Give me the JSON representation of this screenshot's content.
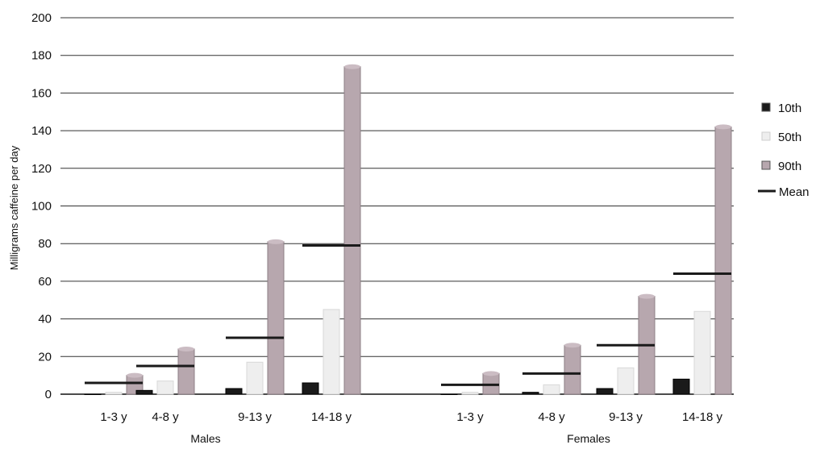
{
  "chart_data": {
    "type": "bar",
    "ylabel": "Milligrams caffeine per day",
    "ylim": [
      0,
      200
    ],
    "yticks": [
      "0",
      "20",
      "40",
      "60",
      "80",
      "100",
      "120",
      "140",
      "160",
      "180",
      "200"
    ],
    "grid": true,
    "legend_position": "right",
    "groups": [
      {
        "name": "Males",
        "categories": [
          "1-3 y",
          "4-8 y",
          "9-13 y",
          "14-18 y"
        ],
        "series": [
          {
            "name": "10th",
            "values": [
              0,
              2,
              3,
              6
            ]
          },
          {
            "name": "50th",
            "values": [
              1,
              7,
              17,
              45
            ]
          },
          {
            "name": "90th",
            "values": [
              10,
              24,
              81,
              174
            ]
          },
          {
            "name": "Mean",
            "values": [
              6,
              15,
              30,
              79
            ]
          }
        ]
      },
      {
        "name": "Females",
        "categories": [
          "1-3 y",
          "4-8 y",
          "9-13 y",
          "14-18 y"
        ],
        "series": [
          {
            "name": "10th",
            "values": [
              0,
              1,
              3,
              8
            ]
          },
          {
            "name": "50th",
            "values": [
              1,
              5,
              14,
              44
            ]
          },
          {
            "name": "90th",
            "values": [
              11,
              26,
              52,
              142
            ]
          },
          {
            "name": "Mean",
            "values": [
              5,
              11,
              26,
              64
            ]
          }
        ]
      }
    ],
    "legend": [
      "10th",
      "50th",
      "90th",
      "Mean"
    ],
    "colors": {
      "p10": "#1a1a1a",
      "p50": "#eeeeee",
      "p90": "#b7a7ae",
      "mean": "#1a1a1a",
      "grid": "#333333"
    }
  }
}
